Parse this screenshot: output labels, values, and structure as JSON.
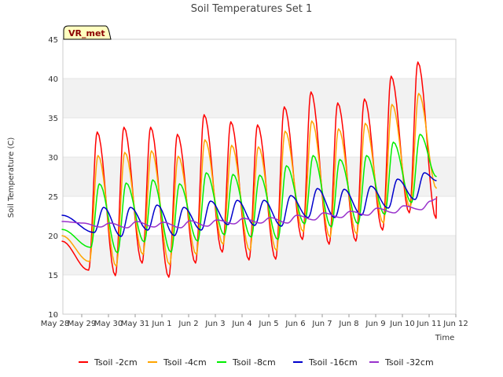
{
  "chart_data": {
    "type": "line",
    "title": "Soil Temperatures Set 1",
    "xlabel": "Time",
    "ylabel": "Soil Temperature (C)",
    "station_label": "VR_met",
    "ylim": [
      10,
      45
    ],
    "y_ticks": [
      10,
      15,
      20,
      25,
      30,
      35,
      40,
      45
    ],
    "xlim": [
      0,
      15
    ],
    "x_ticks": [
      {
        "value": 0,
        "label": "May 28"
      },
      {
        "value": 1,
        "label": "May 29"
      },
      {
        "value": 2,
        "label": "May 30"
      },
      {
        "value": 3,
        "label": "May 31"
      },
      {
        "value": 4,
        "label": "Jun 1"
      },
      {
        "value": 5,
        "label": "Jun 2"
      },
      {
        "value": 6,
        "label": "Jun 3"
      },
      {
        "value": 7,
        "label": "Jun 4"
      },
      {
        "value": 8,
        "label": "Jun 5"
      },
      {
        "value": 9,
        "label": "Jun 6"
      },
      {
        "value": 10,
        "label": "Jun 7"
      },
      {
        "value": 11,
        "label": "Jun 8"
      },
      {
        "value": 12,
        "label": "Jun 9"
      },
      {
        "value": 13,
        "label": "Jun 10"
      },
      {
        "value": 14,
        "label": "Jun 11"
      },
      {
        "value": 15,
        "label": "Jun 12"
      }
    ],
    "grid": "horizontal bands",
    "band_color": "#f2f2f2",
    "legend_position": "bottom",
    "sample_days_start": 0.25,
    "sample_days_end": 14.25,
    "series": [
      {
        "name": "Tsoil -2cm",
        "color": "#ff0000",
        "daily_max": [
          33.2,
          33.8,
          33.8,
          32.9,
          35.4,
          34.5,
          34.1,
          36.4,
          38.3,
          36.9,
          37.4,
          40.3,
          42.1,
          41.6
        ],
        "daily_min": [
          15.6,
          14.9,
          16.5,
          14.7,
          16.5,
          17.9,
          16.9,
          17.0,
          19.5,
          18.9,
          19.3,
          20.7,
          22.9,
          22.2
        ],
        "peak_phase": 0.58,
        "trough_phase": 0.26,
        "start_value": 19.3,
        "end_value": 25.0
      },
      {
        "name": "Tsoil -4cm",
        "color": "#ffa500",
        "daily_max": [
          30.2,
          30.6,
          30.8,
          30.1,
          32.2,
          31.5,
          31.3,
          33.3,
          34.6,
          33.6,
          34.3,
          36.7,
          38.1,
          37.9
        ],
        "daily_min": [
          16.7,
          16.1,
          17.6,
          16.3,
          17.6,
          18.9,
          18.1,
          18.1,
          20.5,
          19.8,
          20.2,
          21.6,
          23.6,
          23.0
        ],
        "peak_phase": 0.61,
        "trough_phase": 0.29,
        "start_value": 20.0,
        "end_value": 26.0
      },
      {
        "name": "Tsoil -8cm",
        "color": "#00ee00",
        "daily_max": [
          26.6,
          26.7,
          27.1,
          26.6,
          28.0,
          27.8,
          27.7,
          28.9,
          30.2,
          29.7,
          30.2,
          31.9,
          32.9,
          33.0
        ],
        "daily_min": [
          18.5,
          17.8,
          19.2,
          17.9,
          19.3,
          20.1,
          19.8,
          19.5,
          21.5,
          21.1,
          21.5,
          22.7,
          24.2,
          24.1
        ],
        "peak_phase": 0.66,
        "trough_phase": 0.34,
        "start_value": 20.8,
        "end_value": 27.5
      },
      {
        "name": "Tsoil -16cm",
        "color": "#0000cc",
        "daily_max": [
          23.6,
          23.6,
          23.9,
          23.6,
          24.4,
          24.5,
          24.5,
          25.1,
          26.0,
          25.9,
          26.3,
          27.2,
          28.0,
          28.2
        ],
        "daily_min": [
          20.4,
          19.9,
          20.7,
          20.0,
          20.7,
          21.4,
          21.3,
          21.2,
          22.3,
          22.3,
          22.6,
          23.5,
          24.6,
          24.8
        ],
        "peak_phase": 0.82,
        "trough_phase": 0.47,
        "start_value": 22.6,
        "end_value": 27.0
      },
      {
        "name": "Tsoil -32cm",
        "color": "#9932cc",
        "daily_max": [
          21.6,
          21.6,
          21.8,
          21.7,
          21.9,
          22.0,
          22.2,
          22.3,
          22.6,
          22.9,
          23.1,
          23.5,
          23.8,
          24.4
        ],
        "daily_min": [
          21.1,
          21.0,
          21.1,
          21.0,
          21.2,
          21.5,
          21.6,
          21.6,
          22.0,
          22.3,
          22.6,
          22.9,
          23.3,
          23.9
        ],
        "peak_phase": 0.05,
        "trough_phase": 0.7,
        "start_value": 21.8,
        "end_value": 24.7
      }
    ]
  }
}
